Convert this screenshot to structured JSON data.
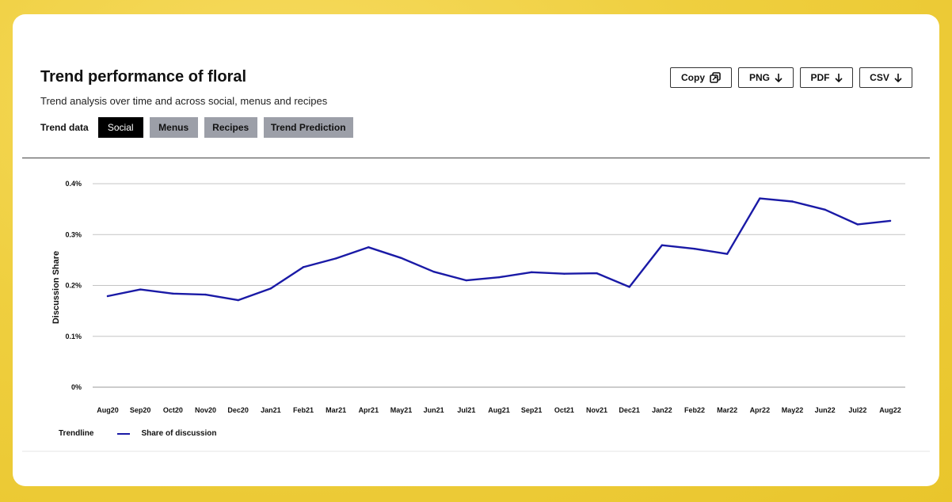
{
  "header": {
    "title": "Trend performance of floral",
    "subtitle": "Trend analysis over time and across social, menus and recipes",
    "trend_label": "Trend data"
  },
  "tabs": [
    {
      "label": "Social",
      "active": true
    },
    {
      "label": "Menus",
      "active": false
    },
    {
      "label": "Recipes",
      "active": false
    },
    {
      "label": "Trend Prediction",
      "active": false
    }
  ],
  "exports": [
    {
      "label": "Copy",
      "icon": "copy-icon"
    },
    {
      "label": "PNG",
      "icon": "arrow-down-icon"
    },
    {
      "label": "PDF",
      "icon": "arrow-down-icon"
    },
    {
      "label": "CSV",
      "icon": "arrow-down-icon"
    }
  ],
  "legend": {
    "title": "Trendline",
    "series_label": "Share of discussion"
  },
  "colors": {
    "line": "#1a1aa6",
    "grid": "#c4c4c4",
    "tab_active": "#000000",
    "tab_inactive": "#9c9fa8"
  },
  "chart_data": {
    "type": "line",
    "title": "",
    "ylabel": "Discussion Share",
    "xlabel": "",
    "ylim": [
      0,
      0.4
    ],
    "yticks": [
      0,
      0.1,
      0.2,
      0.3,
      0.4
    ],
    "ytick_labels": [
      "0%",
      "0.1%",
      "0.2%",
      "0.3%",
      "0.4%"
    ],
    "grid": true,
    "legend_position": "bottom-left",
    "categories": [
      "Aug20",
      "Sep20",
      "Oct20",
      "Nov20",
      "Dec20",
      "Jan21",
      "Feb21",
      "Mar21",
      "Apr21",
      "May21",
      "Jun21",
      "Jul21",
      "Aug21",
      "Sep21",
      "Oct21",
      "Nov21",
      "Dec21",
      "Jan22",
      "Feb22",
      "Mar22",
      "Apr22",
      "May22",
      "Jun22",
      "Jul22",
      "Aug22"
    ],
    "series": [
      {
        "name": "Share of discussion",
        "values": [
          0.179,
          0.192,
          0.184,
          0.182,
          0.171,
          0.194,
          0.236,
          0.253,
          0.275,
          0.254,
          0.227,
          0.21,
          0.216,
          0.226,
          0.223,
          0.224,
          0.197,
          0.279,
          0.272,
          0.262,
          0.371,
          0.365,
          0.349,
          0.32,
          0.327
        ]
      }
    ]
  }
}
